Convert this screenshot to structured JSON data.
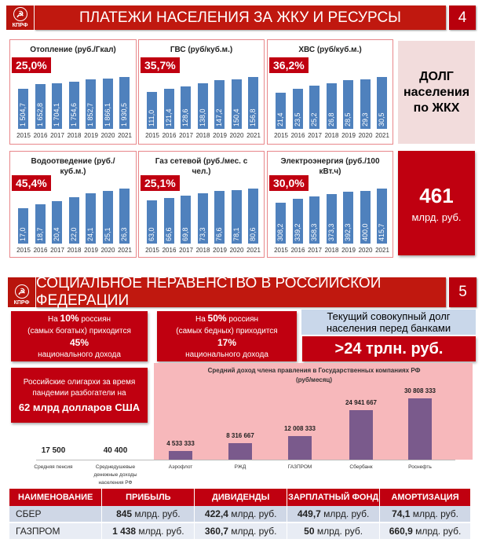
{
  "slide4": {
    "logo_text": "КПРФ",
    "title": "ПЛАТЕЖИ НАСЕЛЕНИЯ ЗА ЖКУ И РЕСУРСЫ",
    "number": "4",
    "debt_label": "ДОЛГ населения по ЖКХ",
    "debt_value": "461",
    "debt_unit": "млрд. руб."
  },
  "chart_data": [
    {
      "type": "bar",
      "title": "Отопление (руб./Гкал)",
      "badge": "25,0%",
      "categories": [
        "2015",
        "2016",
        "2017",
        "2018",
        "2019",
        "2020",
        "2021"
      ],
      "values": [
        1504.7,
        1652.8,
        1704.1,
        1754.6,
        1852.7,
        1866.1,
        1930.5
      ],
      "labels": [
        "1 504,7",
        "1 652,8",
        "1 704,1",
        "1 754,6",
        "1 852,7",
        "1 866,1",
        "1 930,5"
      ]
    },
    {
      "type": "bar",
      "title": "ГВС (руб/куб.м.)",
      "badge": "35,7%",
      "categories": [
        "2015",
        "2016",
        "2017",
        "2018",
        "2019",
        "2020",
        "2021"
      ],
      "values": [
        111.0,
        121.4,
        128.6,
        138.0,
        147.2,
        150.4,
        156.8
      ],
      "labels": [
        "111,0",
        "121,4",
        "128,6",
        "138,0",
        "147,2",
        "150,4",
        "156,8"
      ]
    },
    {
      "type": "bar",
      "title": "ХВС (руб/куб.м.)",
      "badge": "36,2%",
      "categories": [
        "2015",
        "2016",
        "2017",
        "2018",
        "2019",
        "2020",
        "2021"
      ],
      "values": [
        21.4,
        23.5,
        25.2,
        26.8,
        28.5,
        29.3,
        30.5
      ],
      "labels": [
        "21,4",
        "23,5",
        "25,2",
        "26,8",
        "28,5",
        "29,3",
        "30,5"
      ]
    },
    {
      "type": "bar",
      "title": "Водоотведение (руб./куб.м.)",
      "badge": "45,4%",
      "categories": [
        "2015",
        "2016",
        "2017",
        "2018",
        "2019",
        "2020",
        "2021"
      ],
      "values": [
        17.0,
        18.7,
        20.4,
        22.0,
        24.1,
        25.1,
        26.3
      ],
      "labels": [
        "17,0",
        "18,7",
        "20,4",
        "22,0",
        "24,1",
        "25,1",
        "26,3"
      ]
    },
    {
      "type": "bar",
      "title": "Газ сетевой (руб./мес. с чел.)",
      "badge": "25,1%",
      "categories": [
        "2015",
        "2016",
        "2017",
        "2018",
        "2019",
        "2020",
        "2021"
      ],
      "values": [
        63.0,
        66.6,
        69.8,
        73.3,
        76.6,
        78.1,
        80.6
      ],
      "labels": [
        "63,0",
        "66,6",
        "69,8",
        "73,3",
        "76,6",
        "78,1",
        "80,6"
      ]
    },
    {
      "type": "bar",
      "title": "Электроэнергия (руб./100 кВт.ч)",
      "badge": "30,0%",
      "categories": [
        "2015",
        "2016",
        "2017",
        "2018",
        "2019",
        "2020",
        "2021"
      ],
      "values": [
        308.2,
        339.2,
        358.3,
        373.3,
        392.3,
        400.0,
        415.7
      ],
      "labels": [
        "308,2",
        "339,2",
        "358,3",
        "373,3",
        "392,3",
        "400,0",
        "415,7"
      ]
    },
    {
      "type": "bar",
      "title": "Средний доход члена правления в Государственных компаниях РФ (руб/месяц)",
      "categories": [
        "Средняя пенсия",
        "Среднедушевые денежные доходы населения РФ",
        "Аэрофлот",
        "РЖД",
        "ГАЗПРОМ",
        "Сбербанк",
        "Роснефть"
      ],
      "values": [
        17500,
        40400,
        4533333,
        8316667,
        12008333,
        24941667,
        30808333
      ],
      "labels": [
        "17 500",
        "40 400",
        "4 533 333",
        "8 316 667",
        "12 008 333",
        "24 941 667",
        "30 808 333"
      ]
    }
  ],
  "slide5": {
    "logo_text": "КПРФ",
    "title": "СОЦИАЛЬНОЕ НЕРАВЕНСТВО В РОССИЙСКОЙ ФЕДЕРАЦИИ",
    "number": "5",
    "box1": {
      "l1a": "На ",
      "l1b": "10%",
      "l1c": " россиян",
      "l2": "(самых богатых) приходится",
      "l3": "45%",
      "l4": "национального дохода"
    },
    "box2": {
      "l1a": "На ",
      "l1b": "50%",
      "l1c": " россиян",
      "l2": "(самых бедных)  приходится",
      "l3": "17%",
      "l4": "национального дохода"
    },
    "debt_label": "Текущий совокупный долг населения перед банками",
    "debt_value": ">24 трлн. руб.",
    "oligarchs": {
      "l1": "Российские олигархи за время пандемии разбогатели на",
      "l2": "62 млрд долларов США"
    }
  },
  "table": {
    "headers": [
      "НАИМЕНОВАНИЕ",
      "ПРИБЫЛЬ",
      "ДИВИДЕНДЫ",
      "ЗАРПЛАТНЫЙ ФОНД",
      "АМОРТИЗАЦИЯ"
    ],
    "rows": [
      {
        "name": "СБЕР",
        "cells": [
          {
            "v": "845",
            "u": " млрд. руб."
          },
          {
            "v": "422,4",
            "u": " млрд. руб."
          },
          {
            "v": "449,7",
            "u": " млрд. руб."
          },
          {
            "v": "74,1",
            "u": " млрд. руб."
          }
        ]
      },
      {
        "name": "ГАЗПРОМ",
        "cells": [
          {
            "v": "1 438",
            "u": " млрд. руб."
          },
          {
            "v": "360,7",
            "u": " млрд. руб."
          },
          {
            "v": "50",
            "u": " млрд. руб."
          },
          {
            "v": "660,9",
            "u": " млрд. руб."
          }
        ]
      }
    ]
  }
}
